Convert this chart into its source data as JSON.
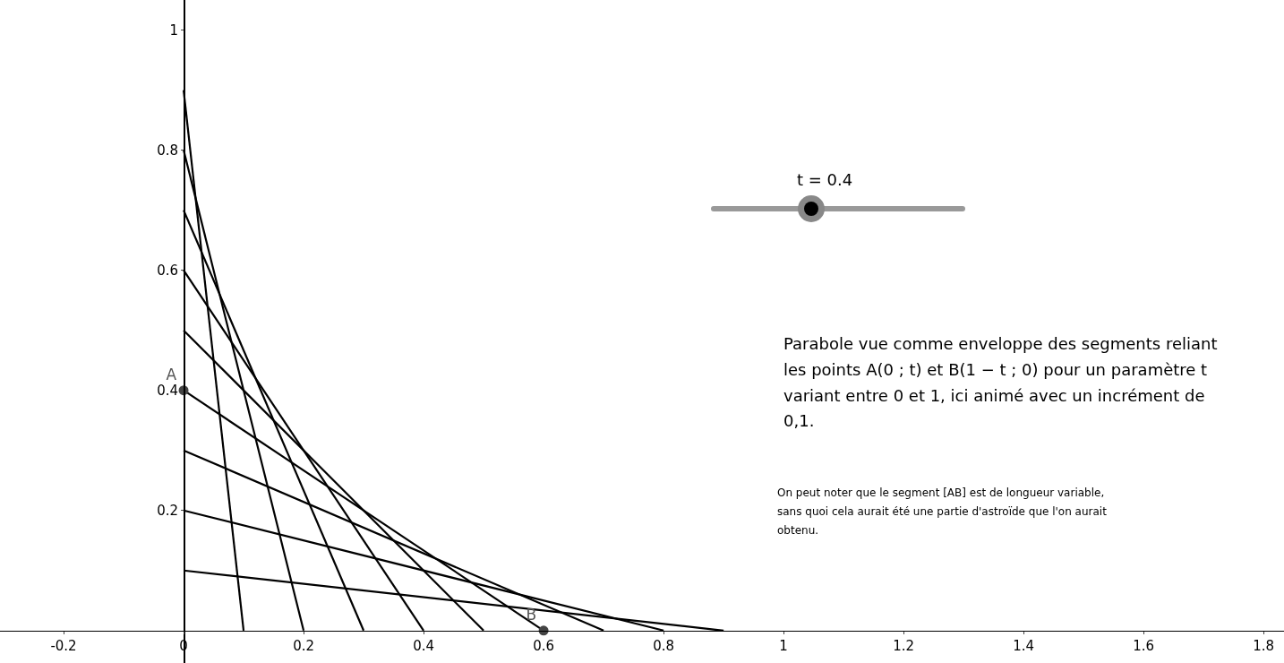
{
  "chart_data": {
    "type": "line",
    "xlim": [
      -0.306,
      1.834
    ],
    "ylim": [
      -0.054,
      1.05
    ],
    "xticks": [
      -0.2,
      0,
      0.2,
      0.4,
      0.6,
      0.8,
      1,
      1.2,
      1.4,
      1.6,
      1.8
    ],
    "yticks": [
      0.2,
      0.4,
      0.6,
      0.8,
      1
    ],
    "grid": false,
    "legend": false,
    "marker": "none",
    "line_style": "solid",
    "series": [
      {
        "color": "#000000",
        "x": [
          0,
          0.9
        ],
        "values": [
          0.1,
          0
        ]
      },
      {
        "color": "#000000",
        "x": [
          0,
          0.8
        ],
        "values": [
          0.2,
          0
        ]
      },
      {
        "color": "#000000",
        "x": [
          0,
          0.7
        ],
        "values": [
          0.3,
          0
        ]
      },
      {
        "color": "#000000",
        "x": [
          0,
          0.6
        ],
        "values": [
          0.4,
          0
        ]
      },
      {
        "color": "#000000",
        "x": [
          0,
          0.5
        ],
        "values": [
          0.5,
          0
        ]
      },
      {
        "color": "#000000",
        "x": [
          0,
          0.4
        ],
        "values": [
          0.6,
          0
        ]
      },
      {
        "color": "#000000",
        "x": [
          0,
          0.3
        ],
        "values": [
          0.7,
          0
        ]
      },
      {
        "color": "#000000",
        "x": [
          0,
          0.2
        ],
        "values": [
          0.8,
          0
        ]
      },
      {
        "color": "#000000",
        "x": [
          0,
          0.1
        ],
        "values": [
          0.9,
          0
        ]
      },
      {
        "type": "scatter",
        "name": "A",
        "color": "#444444",
        "marker": "circle",
        "x": [
          0
        ],
        "values": [
          0.4
        ]
      },
      {
        "type": "scatter",
        "name": "B",
        "color": "#444444",
        "marker": "circle",
        "x": [
          0.6
        ],
        "values": [
          0
        ]
      }
    ],
    "annotations": [
      "t = 0.4",
      "Parabole vue comme enveloppe des segments reliant les points A(0 ;  t) et B(1 − t ; 0) pour un paramètre t variant entre 0 et 1, ici animé avec un incrément de 0,1.",
      "On peut noter que le segment [AB] est de longueur variable, sans quoi cela aurait été une partie d'astroïde que l'on aurait obtenu."
    ]
  }
}
